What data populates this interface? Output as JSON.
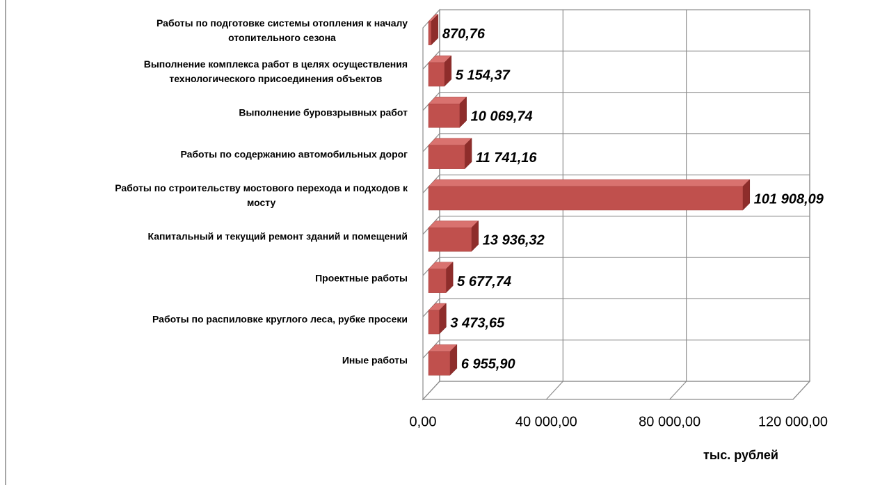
{
  "chart_data": {
    "type": "bar",
    "orientation": "horizontal",
    "three_d": true,
    "categories": [
      "Работы по подготовке системы отопления к началу\nотопительного сезона",
      "Выполнение комплекса работ в целях осуществления\nтехнологического присоединения объектов",
      "Выполнение буровзрывных работ",
      "Работы по содержанию автомобильных дорог",
      "Работы по строительству мостового перехода и подходов к\nмосту",
      "Капитальный и текущий ремонт зданий и помещений",
      "Проектные работы",
      "Работы по распиловке круглого леса, рубке просеки",
      "Иные работы"
    ],
    "values": [
      870.76,
      5154.37,
      10069.74,
      11741.16,
      101908.09,
      13936.32,
      5677.74,
      3473.65,
      6955.9
    ],
    "value_labels": [
      "870,76",
      "5 154,37",
      "10 069,74",
      "11 741,16",
      "101 908,09",
      "13 936,32",
      "5 677,74",
      "3 473,65",
      "6 955,90"
    ],
    "color": "#c0504d",
    "xlim": [
      0,
      120000
    ],
    "xticks": [
      {
        "value": 0,
        "label": "0,00"
      },
      {
        "value": 40000,
        "label": "40 000,00"
      },
      {
        "value": 80000,
        "label": "80 000,00"
      },
      {
        "value": 120000,
        "label": "120 000,00"
      }
    ],
    "xlabel": "тыс. рублей",
    "grid": true
  }
}
